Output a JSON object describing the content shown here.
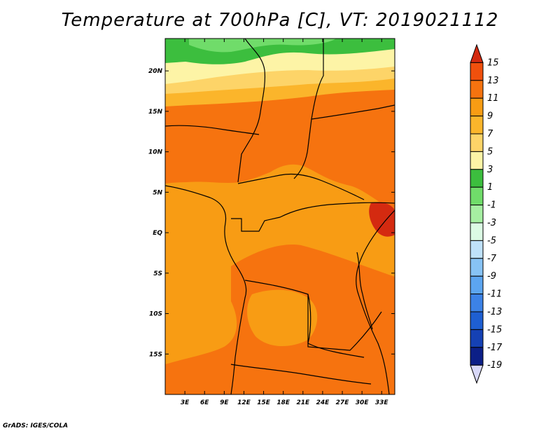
{
  "title": "Temperature at 700hPa [C], VT: 2019021112",
  "credit": "GrADS: IGES/COLA",
  "map": {
    "lon_range": [
      0,
      35
    ],
    "lat_range": [
      -20,
      24
    ],
    "x_ticks": [
      {
        "lon": 3,
        "label": "3E"
      },
      {
        "lon": 6,
        "label": "6E"
      },
      {
        "lon": 9,
        "label": "9E"
      },
      {
        "lon": 12,
        "label": "12E"
      },
      {
        "lon": 15,
        "label": "15E"
      },
      {
        "lon": 18,
        "label": "18E"
      },
      {
        "lon": 21,
        "label": "21E"
      },
      {
        "lon": 24,
        "label": "24E"
      },
      {
        "lon": 27,
        "label": "27E"
      },
      {
        "lon": 30,
        "label": "30E"
      },
      {
        "lon": 33,
        "label": "33E"
      }
    ],
    "y_ticks": [
      {
        "lat": 20,
        "label": "20N"
      },
      {
        "lat": 15,
        "label": "15N"
      },
      {
        "lat": 10,
        "label": "10N"
      },
      {
        "lat": 5,
        "label": "5N"
      },
      {
        "lat": 0,
        "label": "EQ"
      },
      {
        "lat": -5,
        "label": "5S"
      },
      {
        "lat": -10,
        "label": "10S"
      },
      {
        "lat": -15,
        "label": "15S"
      }
    ]
  },
  "colorbar": {
    "levels": [
      "15",
      "13",
      "11",
      "9",
      "7",
      "5",
      "3",
      "1",
      "-1",
      "-3",
      "-5",
      "-7",
      "-9",
      "-11",
      "-13",
      "-15",
      "-17",
      "-19"
    ],
    "colors": [
      "#d42a10",
      "#f0500d",
      "#f6730f",
      "#f89c14",
      "#fbb52b",
      "#fdd468",
      "#fdf4a6",
      "#3cbe3e",
      "#70dc6a",
      "#a6efa2",
      "#dcfbe4",
      "#bfe1fa",
      "#87c3f5",
      "#5ca5f0",
      "#3c82e6",
      "#1e5fd2",
      "#1541b4",
      "#0c1f87",
      "#d8d8f8"
    ]
  }
}
